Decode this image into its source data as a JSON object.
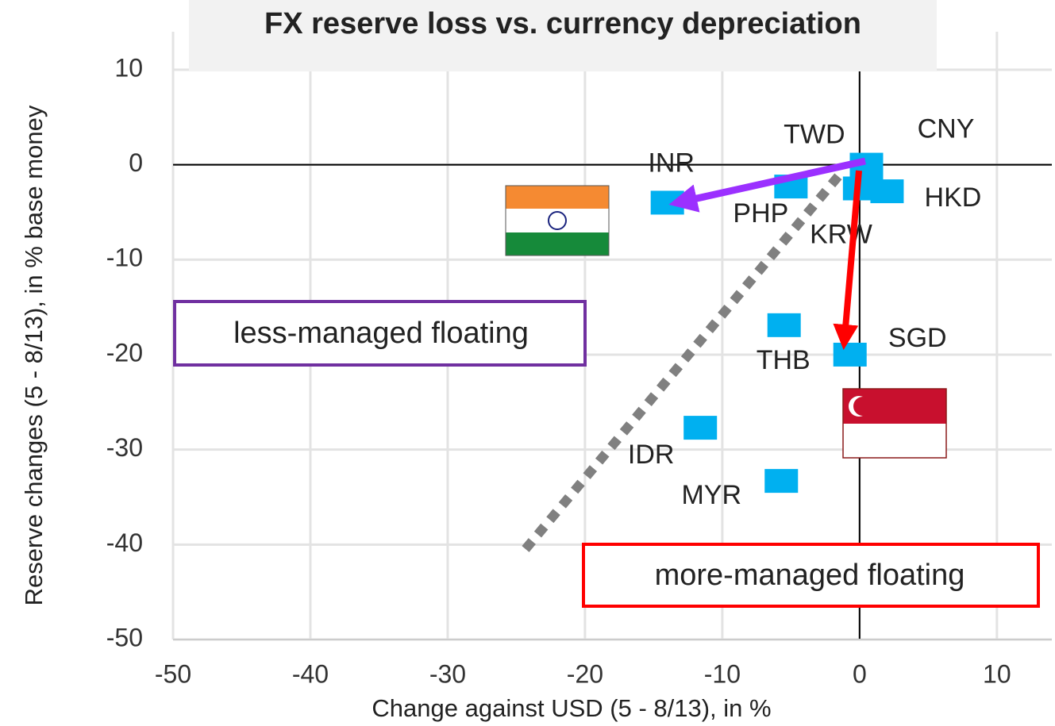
{
  "chart_data": {
    "type": "scatter",
    "title": "FX reserve loss vs. currency depreciation",
    "x_label": "Change against USD (5 - 8/13), in %",
    "y_label": "Reserve changes (5 - 8/13), in % base money",
    "point_labels": [
      "INR",
      "PHP",
      "TWD",
      "CNY",
      "KRW",
      "HKD",
      "THB",
      "SGD",
      "IDR",
      "MYR"
    ],
    "x": [
      -14,
      -5,
      0,
      0.5,
      0.5,
      2,
      -5.5,
      -0.7,
      -11.6,
      -5.7
    ],
    "values": [
      -4,
      -2.3,
      -2.5,
      0,
      -1.5,
      -2.8,
      -16.9,
      -20,
      -27.7,
      -33.3
    ],
    "color": "#00b0f0",
    "xlim": [
      -50,
      14
    ],
    "ylim": [
      -50,
      14
    ],
    "xticks": [
      -50,
      -40,
      -30,
      -20,
      -10,
      0,
      10
    ],
    "yticks": [
      -50,
      -40,
      -30,
      -20,
      -10,
      0,
      10
    ],
    "grid": true,
    "annotations": [
      "less-managed floating",
      "more-managed floating"
    ]
  }
}
